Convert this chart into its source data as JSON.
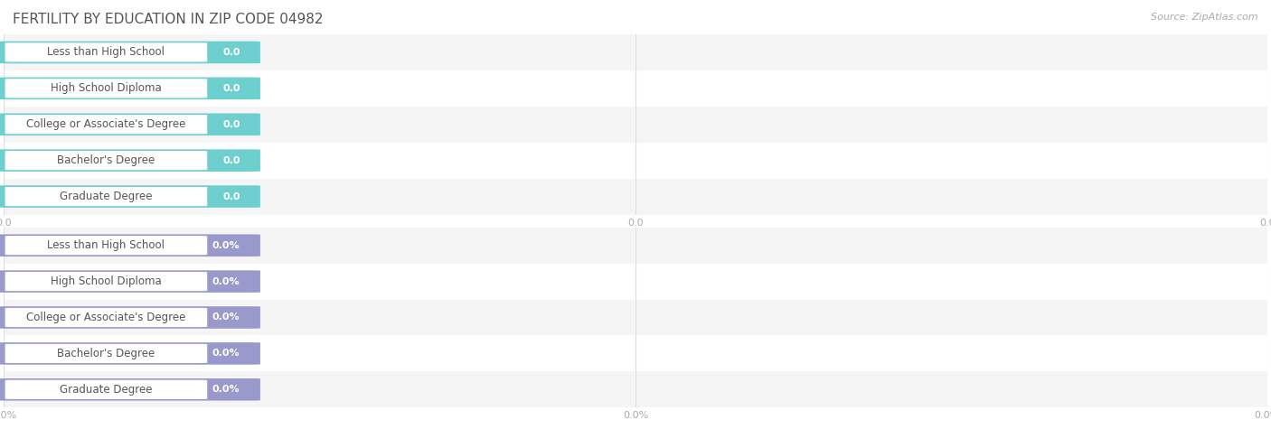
{
  "title": "FERTILITY BY EDUCATION IN ZIP CODE 04982",
  "source_text": "Source: ZipAtlas.com",
  "categories": [
    "Less than High School",
    "High School Diploma",
    "College or Associate's Degree",
    "Bachelor's Degree",
    "Graduate Degree"
  ],
  "top_values": [
    0.0,
    0.0,
    0.0,
    0.0,
    0.0
  ],
  "bottom_values": [
    0.0,
    0.0,
    0.0,
    0.0,
    0.0
  ],
  "top_bar_color": "#6ecfcf",
  "bottom_bar_color": "#9999cc",
  "label_bg": "#ffffff",
  "bg_color": "#ffffff",
  "row_bg_even": "#f5f5f5",
  "row_bg_odd": "#ffffff",
  "grid_color": "#dddddd",
  "title_color": "#555555",
  "label_color": "#555555",
  "value_color": "#ffffff",
  "tick_color": "#aaaaaa",
  "source_color": "#aaaaaa",
  "title_fontsize": 11,
  "label_fontsize": 8.5,
  "value_fontsize": 8,
  "tick_fontsize": 8,
  "source_fontsize": 8
}
